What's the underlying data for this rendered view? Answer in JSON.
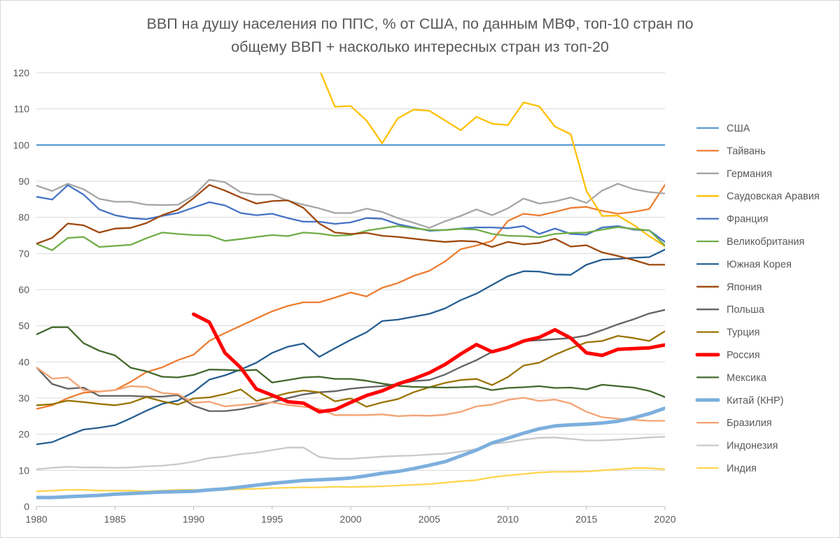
{
  "chart_data": {
    "type": "line",
    "title_line1": "ВВП на душу населения по ППС, % от США, по данным МВФ, топ-10 стран по",
    "title_line2": "общему ВВП + насколько интересных стран из топ-20",
    "xlabel": "",
    "ylabel": "",
    "xlim": [
      1980,
      2020
    ],
    "ylim": [
      0,
      120
    ],
    "x_ticks": [
      1980,
      1985,
      1990,
      1995,
      2000,
      2005,
      2010,
      2015,
      2020
    ],
    "y_ticks": [
      0,
      10,
      20,
      30,
      40,
      50,
      60,
      70,
      80,
      90,
      100,
      110,
      120
    ],
    "grid": "horizontal",
    "legend_position": "right",
    "series": [
      {
        "name": "США",
        "color": "#5b9bd5",
        "emphasis": "normal",
        "x_start": 1980,
        "values": [
          100,
          100,
          100,
          100,
          100,
          100,
          100,
          100,
          100,
          100,
          100,
          100,
          100,
          100,
          100,
          100,
          100,
          100,
          100,
          100,
          100,
          100,
          100,
          100,
          100,
          100,
          100,
          100,
          100,
          100,
          100,
          100,
          100,
          100,
          100,
          100,
          100,
          100,
          100,
          100,
          100
        ]
      },
      {
        "name": "Тайвань",
        "color": "#ed7d31",
        "emphasis": "normal",
        "x_start": 1980,
        "values": [
          27,
          28,
          30,
          31.5,
          31.8,
          32.2,
          34.5,
          37.2,
          38.5,
          40.5,
          42,
          45.8,
          48,
          50,
          52,
          54,
          55.5,
          56.5,
          56.5,
          57.8,
          59.2,
          58.1,
          60.5,
          61.8,
          63.8,
          65.2,
          67.8,
          71.2,
          72.2,
          73.5,
          79,
          81,
          80.5,
          81.5,
          82.6,
          82.9,
          81.8,
          81,
          81.5,
          82.3,
          89
        ]
      },
      {
        "name": "Германия",
        "color": "#a5a5a5",
        "emphasis": "normal",
        "x_start": 1980,
        "values": [
          88.8,
          87.3,
          89.3,
          87.8,
          85.1,
          84.3,
          84.3,
          83.5,
          83.4,
          83.5,
          86,
          90.4,
          89.7,
          86.9,
          86.3,
          86.3,
          84.6,
          83.5,
          82.5,
          81.2,
          81.2,
          82.4,
          81.5,
          79.8,
          78.5,
          77.1,
          78.9,
          80.4,
          82.2,
          80.6,
          82.5,
          85.2,
          83.8,
          84.4,
          85.5,
          84,
          87.4,
          89.3,
          87.8,
          87,
          86.6
        ]
      },
      {
        "name": "Саудовская Аравия",
        "color": "#ffc000",
        "emphasis": "normal",
        "x_start": 1997,
        "values": [
          130,
          121,
          110.6,
          110.8,
          106.8,
          100.5,
          107.4,
          109.8,
          109.5,
          106.8,
          104.1,
          107.8,
          105.9,
          105.5,
          111.8,
          110.7,
          105.1,
          103,
          87.3,
          80.4,
          80.5,
          77.9,
          74.8,
          72
        ]
      },
      {
        "name": "Франция",
        "color": "#4472c4",
        "emphasis": "normal",
        "x_start": 1980,
        "values": [
          85.7,
          84.9,
          88.9,
          86.3,
          82.2,
          80.6,
          79.8,
          79.5,
          80.4,
          81.2,
          82.7,
          84.2,
          83.3,
          81.2,
          80.6,
          81,
          79.8,
          78.8,
          78.8,
          78.2,
          78.6,
          79.8,
          79.6,
          78.1,
          77.2,
          76.3,
          76.5,
          76.9,
          77.2,
          77.2,
          77,
          77.6,
          75.4,
          76.9,
          75.4,
          75.2,
          77.2,
          77.6,
          76.6,
          76.4,
          73.2
        ]
      },
      {
        "name": "Великобритания",
        "color": "#70ad47",
        "emphasis": "normal",
        "x_start": 1980,
        "values": [
          72.7,
          70.9,
          74.3,
          74.6,
          71.8,
          72.1,
          72.4,
          74.2,
          75.8,
          75.4,
          75.1,
          75,
          73.5,
          74,
          74.6,
          75.1,
          74.8,
          75.8,
          75.5,
          74.9,
          75.1,
          76.3,
          77,
          77.6,
          77,
          76.5,
          76.5,
          76.8,
          76.6,
          75.4,
          74.9,
          74.8,
          74.5,
          75.4,
          75.7,
          75.8,
          76.6,
          77.3,
          76.8,
          76.4,
          72.2
        ]
      },
      {
        "name": "Южная Корея",
        "color": "#255e91",
        "emphasis": "normal",
        "x_start": 1980,
        "values": [
          17.2,
          17.8,
          19.6,
          21.3,
          21.8,
          22.5,
          24.4,
          26.5,
          28.4,
          29.3,
          31.7,
          35.1,
          36.3,
          37.9,
          39.8,
          42.5,
          44.2,
          45.1,
          41.4,
          43.8,
          46.1,
          48.2,
          51.3,
          51.7,
          52.5,
          53.3,
          54.8,
          57.1,
          58.9,
          61.3,
          63.7,
          65.1,
          65,
          64.2,
          64.1,
          66.9,
          68.3,
          68.5,
          68.8,
          69,
          71.1
        ]
      },
      {
        "name": "Япония",
        "color": "#9e480e",
        "emphasis": "normal",
        "x_start": 1980,
        "values": [
          72.7,
          74.3,
          78.3,
          77.8,
          75.8,
          76.9,
          77.1,
          78.4,
          80.6,
          82.1,
          85.3,
          89,
          87.4,
          85.5,
          83.8,
          84.5,
          84.7,
          82.6,
          78.3,
          75.8,
          75.4,
          75.7,
          74.9,
          74.6,
          74.1,
          73.6,
          73.2,
          73.5,
          73.3,
          71.8,
          73.2,
          72.5,
          72.9,
          74.1,
          71.9,
          72.3,
          70.3,
          69.3,
          68.2,
          66.9,
          66.9
        ]
      },
      {
        "name": "Польша",
        "color": "#636363",
        "emphasis": "normal",
        "x_start": 1980,
        "values": [
          38.5,
          33.9,
          32.6,
          32.9,
          30.6,
          30.6,
          30.6,
          30.4,
          30.4,
          30.8,
          27.9,
          26.4,
          26.4,
          26.9,
          27.8,
          28.9,
          30,
          31,
          31.6,
          31.9,
          32.6,
          33,
          33.3,
          33.9,
          34.7,
          35,
          36.5,
          38.6,
          40.5,
          42.8,
          44.2,
          45.8,
          46,
          46.3,
          46.6,
          47.3,
          48.8,
          50.4,
          51.8,
          53.4,
          54.4
        ]
      },
      {
        "name": "Турция",
        "color": "#997300",
        "emphasis": "normal",
        "x_start": 1980,
        "values": [
          28,
          28.3,
          29.3,
          28.9,
          28.4,
          28,
          28.7,
          30.3,
          29.1,
          28.2,
          29.9,
          30.2,
          31.1,
          32.4,
          29.2,
          30.3,
          31.4,
          32.1,
          31.6,
          29.1,
          29.9,
          27.6,
          28.8,
          29.7,
          31.6,
          33,
          34.2,
          35,
          35.3,
          33.6,
          35.8,
          39,
          39.8,
          42,
          43.8,
          45.4,
          45.8,
          47.2,
          46.6,
          45.8,
          48.5
        ]
      },
      {
        "name": "Россия",
        "color": "#ff0000",
        "emphasis": "thick",
        "x_start": 1990,
        "values": [
          53.2,
          51,
          42.5,
          38.4,
          32.5,
          30.8,
          29,
          28.6,
          26.2,
          26.8,
          28.8,
          30.7,
          32,
          33.9,
          35.3,
          37,
          39.3,
          42.2,
          44.8,
          42.8,
          44,
          45.8,
          46.8,
          48.9,
          46.6,
          42.5,
          41.8,
          43.5,
          43.7,
          43.9,
          44.7
        ]
      },
      {
        "name": "Мексика",
        "color": "#43682b",
        "emphasis": "normal",
        "x_start": 1980,
        "values": [
          47.6,
          49.6,
          49.6,
          45.2,
          43.1,
          41.8,
          38.4,
          37.4,
          35.9,
          35.7,
          36.4,
          37.9,
          37.8,
          37.6,
          37.8,
          34.3,
          35,
          35.7,
          35.9,
          35.3,
          35.3,
          34.8,
          34,
          33.4,
          33.1,
          33,
          32.9,
          33,
          33.2,
          32.2,
          32.8,
          33,
          33.3,
          32.8,
          32.9,
          32.4,
          33.7,
          33.3,
          32.9,
          32,
          30.3
        ]
      },
      {
        "name": "Китай (КНР)",
        "color": "#7cafdd",
        "emphasis": "thick",
        "x_start": 1980,
        "values": [
          2.5,
          2.5,
          2.7,
          2.9,
          3.1,
          3.4,
          3.6,
          3.8,
          4,
          4.1,
          4.2,
          4.6,
          4.9,
          5.4,
          5.9,
          6.4,
          6.8,
          7.2,
          7.4,
          7.6,
          7.9,
          8.5,
          9.2,
          9.7,
          10.5,
          11.4,
          12.4,
          14,
          15.6,
          17.6,
          18.9,
          20.3,
          21.5,
          22.3,
          22.6,
          22.8,
          23.1,
          23.6,
          24.5,
          25.7,
          27.2
        ]
      },
      {
        "name": "Бразилия",
        "color": "#f4a373",
        "emphasis": "normal",
        "x_start": 1980,
        "values": [
          38.5,
          35.4,
          35.7,
          32.2,
          31.8,
          32.2,
          33.3,
          33.1,
          31.4,
          31.1,
          28.7,
          29,
          27.7,
          28.1,
          28.5,
          28.8,
          28.1,
          27.6,
          27,
          25.3,
          25.3,
          25.3,
          25.5,
          25,
          25.2,
          25.1,
          25.4,
          26.2,
          27.7,
          28.2,
          29.5,
          30.1,
          29.2,
          29.6,
          28.5,
          26.2,
          24.7,
          24.3,
          24,
          23.7,
          23.7
        ]
      },
      {
        "name": "Индонезия",
        "color": "#c9c9c9",
        "emphasis": "normal",
        "x_start": 1980,
        "values": [
          10.3,
          10.7,
          11,
          10.8,
          10.8,
          10.7,
          10.8,
          11.1,
          11.3,
          11.7,
          12.4,
          13.4,
          13.8,
          14.5,
          14.9,
          15.6,
          16.3,
          16.3,
          13.7,
          13.2,
          13.2,
          13.5,
          13.8,
          14,
          14.1,
          14.4,
          14.6,
          15.2,
          15.9,
          17.3,
          17.8,
          18.5,
          19,
          19.1,
          18.7,
          18.3,
          18.3,
          18.5,
          18.8,
          19.1,
          19.3
        ]
      },
      {
        "name": "Индия",
        "color": "#ffd54f",
        "emphasis": "normal",
        "x_start": 1980,
        "values": [
          4.2,
          4.4,
          4.6,
          4.6,
          4.4,
          4.4,
          4.4,
          4.2,
          4.4,
          4.6,
          4.6,
          4.5,
          4.7,
          4.8,
          4.9,
          5.1,
          5.2,
          5.3,
          5.3,
          5.5,
          5.4,
          5.5,
          5.6,
          5.8,
          6,
          6.2,
          6.6,
          7,
          7.3,
          8.1,
          8.6,
          9,
          9.4,
          9.6,
          9.6,
          9.7,
          10,
          10.3,
          10.6,
          10.6,
          10.3
        ]
      }
    ]
  }
}
